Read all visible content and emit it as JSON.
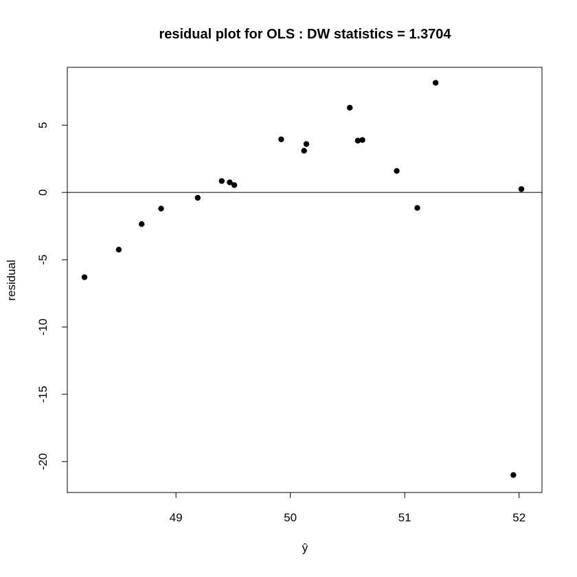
{
  "chart_data": {
    "type": "scatter",
    "title": "residual plot for OLS : DW statistics = 1.3704",
    "xlabel": "ŷ",
    "ylabel": "residual",
    "xlim": [
      48.05,
      52.2
    ],
    "ylim": [
      -22.3,
      9.3
    ],
    "xticks": [
      49,
      50,
      51,
      52
    ],
    "yticks": [
      -20,
      -15,
      -10,
      -5,
      0,
      5
    ],
    "reference_line": {
      "y": 0
    },
    "grid": false,
    "legend": "none",
    "point_color": "#000000",
    "points": [
      {
        "x": 48.2,
        "y": -6.3
      },
      {
        "x": 48.5,
        "y": -4.25
      },
      {
        "x": 48.7,
        "y": -2.35
      },
      {
        "x": 48.87,
        "y": -1.2
      },
      {
        "x": 49.19,
        "y": -0.4
      },
      {
        "x": 49.4,
        "y": 0.85
      },
      {
        "x": 49.47,
        "y": 0.75
      },
      {
        "x": 49.51,
        "y": 0.55
      },
      {
        "x": 49.92,
        "y": 3.95
      },
      {
        "x": 50.12,
        "y": 3.1
      },
      {
        "x": 50.14,
        "y": 3.6
      },
      {
        "x": 50.52,
        "y": 6.3
      },
      {
        "x": 50.59,
        "y": 3.85
      },
      {
        "x": 50.63,
        "y": 3.9
      },
      {
        "x": 50.93,
        "y": 1.6
      },
      {
        "x": 51.11,
        "y": -1.15
      },
      {
        "x": 51.27,
        "y": 8.15
      },
      {
        "x": 51.95,
        "y": -21.0
      },
      {
        "x": 52.02,
        "y": 0.25
      }
    ]
  }
}
